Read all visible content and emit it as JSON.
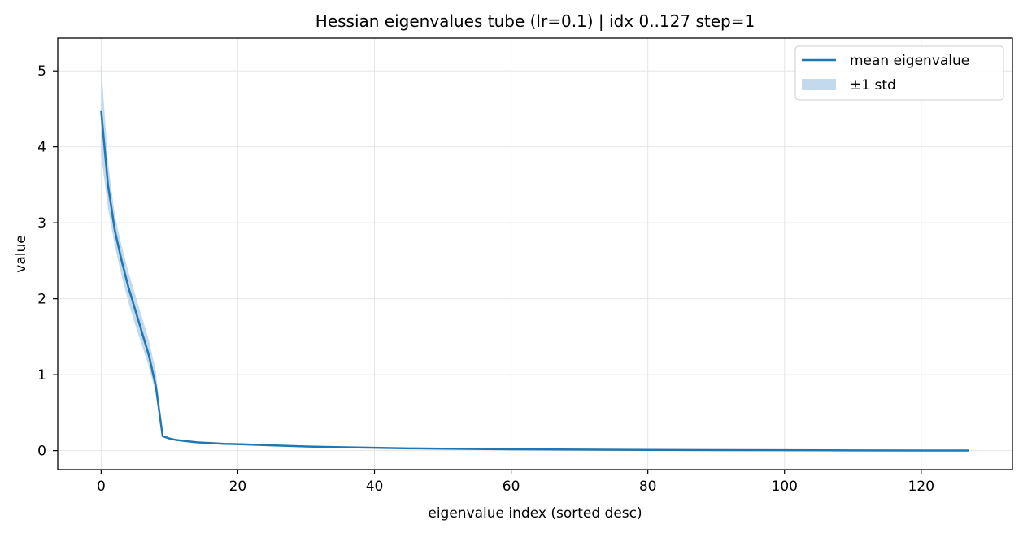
{
  "chart_data": {
    "type": "line",
    "title": "Hessian eigenvalues tube (lr=0.1) | idx 0..127 step=1",
    "xlabel": "eigenvalue index (sorted desc)",
    "ylabel": "value",
    "xlim": [
      -6.35,
      133.35
    ],
    "ylim": [
      -0.25,
      5.43
    ],
    "xticks": [
      0,
      20,
      40,
      60,
      80,
      100,
      120
    ],
    "yticks": [
      0,
      1,
      2,
      3,
      4,
      5
    ],
    "grid": true,
    "legend_position": "top-right",
    "colors": {
      "line": "#1f77b4",
      "band": "#c3d9ec",
      "grid": "#e6e6e6"
    },
    "series": [
      {
        "name": "mean eigenvalue",
        "x": [
          0,
          1,
          2,
          3,
          4,
          5,
          6,
          7,
          8,
          9,
          10,
          11,
          12,
          14,
          16,
          18,
          20,
          25,
          30,
          35,
          40,
          45,
          50,
          55,
          60,
          70,
          80,
          90,
          100,
          110,
          120,
          127
        ],
        "values": [
          4.48,
          3.5,
          2.9,
          2.5,
          2.15,
          1.85,
          1.55,
          1.25,
          0.85,
          0.19,
          0.16,
          0.14,
          0.13,
          0.11,
          0.1,
          0.09,
          0.085,
          0.07,
          0.055,
          0.045,
          0.037,
          0.03,
          0.025,
          0.021,
          0.018,
          0.013,
          0.01,
          0.007,
          0.005,
          0.003,
          0.002,
          0.001
        ]
      },
      {
        "name": "±1 std",
        "x": [
          0,
          1,
          2,
          3,
          4,
          5,
          6,
          7,
          8,
          9
        ],
        "lower": [
          3.9,
          3.2,
          2.7,
          2.3,
          1.95,
          1.65,
          1.38,
          1.1,
          0.75,
          0.17
        ],
        "upper": [
          5.1,
          3.8,
          3.1,
          2.7,
          2.35,
          2.05,
          1.75,
          1.45,
          1.05,
          0.21
        ]
      }
    ]
  }
}
